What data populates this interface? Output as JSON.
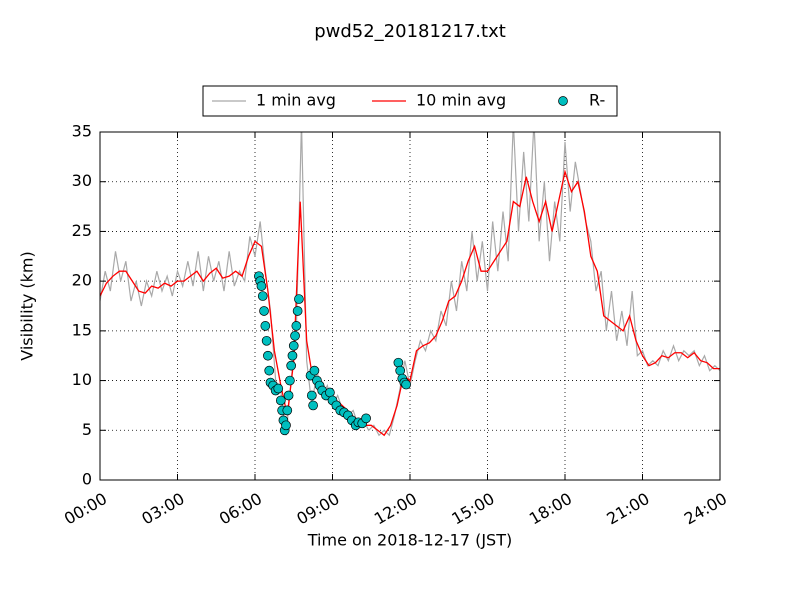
{
  "chart_data": {
    "type": "line",
    "title": "pwd52_20181217.txt",
    "xlabel": "Time on 2018-12-17 (JST)",
    "ylabel": "Visibility (km)",
    "xlim": [
      0,
      24
    ],
    "xticks": [
      {
        "value": 0,
        "label": "00:00"
      },
      {
        "value": 3,
        "label": "03:00"
      },
      {
        "value": 6,
        "label": "06:00"
      },
      {
        "value": 9,
        "label": "09:00"
      },
      {
        "value": 12,
        "label": "12:00"
      },
      {
        "value": 15,
        "label": "15:00"
      },
      {
        "value": 18,
        "label": "18:00"
      },
      {
        "value": 21,
        "label": "21:00"
      },
      {
        "value": 24,
        "label": "24:00"
      }
    ],
    "ylim": [
      0,
      35
    ],
    "yticks": [
      0,
      5,
      10,
      15,
      20,
      25,
      30,
      35
    ],
    "grid": true,
    "legend": "top",
    "series": [
      {
        "name": "1 min avg",
        "color": "#a9a9a9",
        "kind": "line",
        "x": [
          0,
          0.2,
          0.4,
          0.6,
          0.8,
          1,
          1.2,
          1.4,
          1.6,
          1.8,
          2,
          2.2,
          2.4,
          2.6,
          2.8,
          3,
          3.2,
          3.4,
          3.6,
          3.8,
          4,
          4.2,
          4.4,
          4.6,
          4.8,
          5,
          5.2,
          5.4,
          5.6,
          5.8,
          6,
          6.2,
          6.4,
          6.6,
          6.8,
          7,
          7.2,
          7.4,
          7.6,
          7.8,
          8,
          8.2,
          8.4,
          8.6,
          8.8,
          9,
          9.2,
          9.4,
          9.6,
          9.8,
          10,
          10.2,
          10.4,
          10.6,
          10.8,
          11,
          11.2,
          11.4,
          11.6,
          11.8,
          12,
          12.2,
          12.4,
          12.6,
          12.8,
          13,
          13.2,
          13.4,
          13.6,
          13.8,
          14,
          14.2,
          14.4,
          14.6,
          14.8,
          15,
          15.2,
          15.4,
          15.6,
          15.8,
          16,
          16.2,
          16.4,
          16.6,
          16.8,
          17,
          17.2,
          17.4,
          17.6,
          17.8,
          18,
          18.2,
          18.4,
          18.6,
          18.8,
          19,
          19.2,
          19.4,
          19.6,
          19.8,
          20,
          20.2,
          20.4,
          20.6,
          20.8,
          21,
          21.2,
          21.4,
          21.6,
          21.8,
          22,
          22.2,
          22.4,
          22.6,
          22.8,
          23,
          23.2,
          23.4,
          23.6,
          23.8,
          24
        ],
        "values": [
          18,
          21,
          19,
          23,
          20,
          22,
          18,
          20,
          17.5,
          20,
          18.5,
          21,
          19,
          20.5,
          18.5,
          21,
          19.5,
          22,
          19.5,
          23,
          19,
          22.5,
          20,
          22,
          19,
          23,
          19.5,
          21,
          20,
          24.5,
          22.5,
          26,
          21,
          17,
          10,
          9,
          4.5,
          10,
          15,
          36,
          12,
          7.5,
          11,
          8.5,
          9.5,
          7.5,
          8.5,
          7,
          6.5,
          7,
          5.5,
          6,
          5,
          5.5,
          4.5,
          5,
          4.5,
          6.5,
          9,
          12,
          9.5,
          12,
          14,
          13,
          15,
          14,
          17,
          15.5,
          20,
          17,
          22,
          19,
          25,
          20,
          24,
          19,
          26,
          21,
          27,
          22,
          36,
          25,
          33,
          26,
          36,
          24,
          30,
          22,
          28,
          24,
          34,
          27,
          32,
          29,
          26,
          24,
          19,
          21,
          15,
          19,
          14,
          17,
          13.5,
          19,
          12.5,
          13,
          11.5,
          12,
          11.5,
          13,
          12,
          13.5,
          12,
          13,
          12.5,
          13,
          11.5,
          12.5,
          11,
          11.5,
          11
        ]
      },
      {
        "name": "10 min avg",
        "color": "#ff0000",
        "kind": "line",
        "x": [
          0,
          0.25,
          0.5,
          0.75,
          1,
          1.25,
          1.5,
          1.75,
          2,
          2.25,
          2.5,
          2.75,
          3,
          3.25,
          3.5,
          3.75,
          4,
          4.25,
          4.5,
          4.75,
          5,
          5.25,
          5.5,
          5.75,
          6,
          6.25,
          6.5,
          6.75,
          7,
          7.25,
          7.5,
          7.75,
          8,
          8.25,
          8.5,
          8.75,
          9,
          9.25,
          9.5,
          9.75,
          10,
          10.25,
          10.5,
          10.75,
          11,
          11.25,
          11.5,
          11.75,
          12,
          12.25,
          12.5,
          12.75,
          13,
          13.25,
          13.5,
          13.75,
          14,
          14.25,
          14.5,
          14.75,
          15,
          15.25,
          15.5,
          15.75,
          16,
          16.25,
          16.5,
          16.75,
          17,
          17.25,
          17.5,
          17.75,
          18,
          18.25,
          18.5,
          18.75,
          19,
          19.25,
          19.5,
          19.75,
          20,
          20.25,
          20.5,
          20.75,
          21,
          21.25,
          21.5,
          21.75,
          22,
          22.25,
          22.5,
          22.75,
          23,
          23.25,
          23.5,
          23.75,
          24
        ],
        "values": [
          18.5,
          19.8,
          20.5,
          21,
          21,
          20,
          19,
          18.8,
          19.5,
          19.3,
          19.8,
          19.5,
          20,
          20,
          20.5,
          21,
          20,
          20.8,
          21.3,
          20.3,
          20.5,
          21,
          20.5,
          22.5,
          24,
          23.5,
          19,
          13,
          9.5,
          6.5,
          12,
          28,
          14,
          10,
          9.5,
          8.5,
          8.3,
          7.8,
          7.2,
          6.5,
          6,
          5.5,
          5.5,
          5,
          4.5,
          5.5,
          7.5,
          10.5,
          10,
          13,
          13.5,
          13.8,
          14.5,
          16,
          18,
          18.5,
          20,
          22,
          23.5,
          21,
          21,
          22,
          23,
          24,
          28,
          27.5,
          30.5,
          28,
          26,
          28,
          25,
          28,
          31,
          29,
          30,
          27,
          22.5,
          21,
          16.5,
          16,
          15.5,
          15,
          16.5,
          14,
          12.5,
          11.5,
          11.8,
          12.5,
          12.3,
          12.8,
          12.8,
          12.3,
          12.8,
          12,
          11.8,
          11.2,
          11.2
        ]
      },
      {
        "name": "R-",
        "color": "#00bfbf",
        "kind": "scatter",
        "x": [
          6.15,
          6.2,
          6.25,
          6.3,
          6.35,
          6.4,
          6.45,
          6.5,
          6.55,
          6.6,
          6.7,
          6.8,
          6.9,
          7,
          7.05,
          7.1,
          7.15,
          7.2,
          7.25,
          7.3,
          7.35,
          7.4,
          7.45,
          7.5,
          7.55,
          7.6,
          7.65,
          7.7,
          8.15,
          8.2,
          8.25,
          8.3,
          8.4,
          8.5,
          8.6,
          8.75,
          8.9,
          9,
          9.15,
          9.3,
          9.45,
          9.6,
          9.75,
          9.9,
          10,
          10.15,
          10.3,
          11.55,
          11.62,
          11.7,
          11.78,
          11.85
        ],
        "values": [
          20.5,
          20,
          19.5,
          18.5,
          17,
          15.5,
          14,
          12.5,
          11,
          9.8,
          9.5,
          9,
          9.2,
          8,
          7,
          6,
          5,
          5.5,
          7,
          8.5,
          10,
          11.5,
          12.5,
          13.5,
          14.5,
          15.5,
          17,
          18.2,
          10.5,
          8.5,
          7.5,
          11,
          10,
          9.5,
          9,
          8.5,
          8.8,
          8,
          7.5,
          7,
          6.8,
          6.5,
          6,
          5.5,
          5.8,
          5.7,
          6.2,
          11.8,
          11,
          10.2,
          9.8,
          9.6
        ]
      }
    ]
  }
}
